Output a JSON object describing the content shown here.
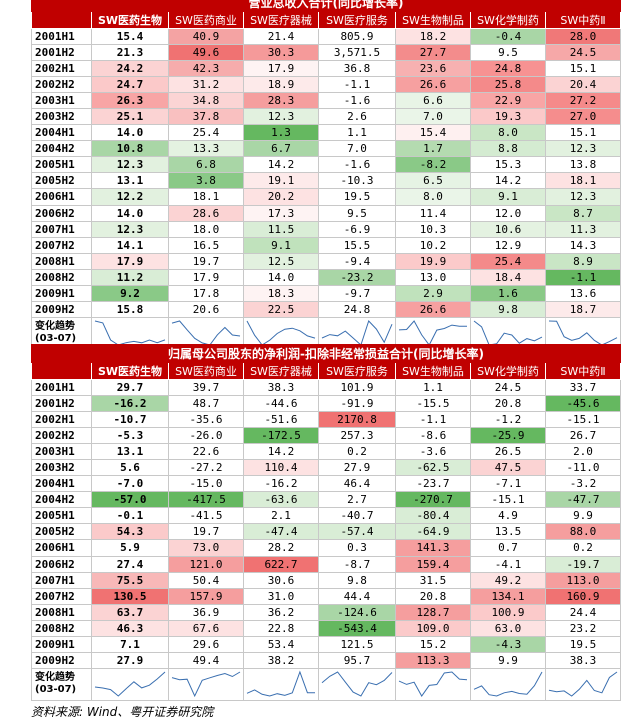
{
  "columns": [
    "SW医药生物",
    "SW医药商业",
    "SW医疗器械",
    "SW医疗服务",
    "SW生物制品",
    "SW化学制药",
    "SW中药Ⅱ"
  ],
  "trend_label": [
    "变化趋势",
    "(03-07)"
  ],
  "source": "资料来源: Wind、粤开证券研究院",
  "colors": {
    "header": "#c00000",
    "border": "#c8c8c8"
  },
  "tables": [
    {
      "title": "营业总收入合计(同比增长率)",
      "rows": [
        {
          "label": "2001H1",
          "values": [
            "15.4",
            "40.9",
            "21.4",
            "805.9",
            "18.2",
            "-0.4",
            "28.0"
          ],
          "bg": [
            "#fff",
            "#f4a3a3",
            "#ffffff",
            "#ffffff",
            "#fde2e2",
            "#a9d6a6",
            "#f07878"
          ]
        },
        {
          "label": "2001H2",
          "values": [
            "21.3",
            "49.6",
            "30.3",
            "3,571.5",
            "27.7",
            "9.5",
            "24.5"
          ],
          "bg": [
            "#fff",
            "#f07272",
            "#f59a9a",
            "#ffffff",
            "#f38c8c",
            "#ffffff",
            "#f6a8a8"
          ]
        },
        {
          "label": "2002H1",
          "values": [
            "24.2",
            "42.3",
            "17.9",
            "36.8",
            "23.6",
            "24.8",
            "15.1"
          ],
          "bg": [
            "#fff",
            "#f6acac",
            "#fef3f3",
            "#ffffff",
            "#f7b1b1",
            "#f79292",
            "#ffffff"
          ]
        },
        {
          "label": "2002H2",
          "values": [
            "24.7",
            "31.2",
            "18.9",
            "-1.1",
            "26.6",
            "25.8",
            "20.4"
          ],
          "bg": [
            "#fff",
            "#fde2e2",
            "#fdeaea",
            "#ffffff",
            "#f6a0a0",
            "#f48a8a",
            "#fbd3d3"
          ]
        },
        {
          "label": "2003H1",
          "values": [
            "26.3",
            "34.8",
            "28.3",
            "-1.6",
            "6.6",
            "22.9",
            "27.2"
          ],
          "bg": [
            "#fff",
            "#fbd4d4",
            "#f59e9e",
            "#ffffff",
            "#e8f4e6",
            "#f8a5a5",
            "#f58a8a"
          ]
        },
        {
          "label": "2003H2",
          "values": [
            "25.1",
            "37.8",
            "12.3",
            "2.6",
            "7.0",
            "19.3",
            "27.0"
          ],
          "bg": [
            "#fff",
            "#f9c0c0",
            "#e2f1df",
            "#ffffff",
            "#eaf5e8",
            "#fbc9c9",
            "#f58d8d"
          ]
        },
        {
          "label": "2004H1",
          "values": [
            "14.0",
            "25.4",
            "1.3",
            "1.1",
            "15.4",
            "8.0",
            "15.1"
          ],
          "bg": [
            "#fff",
            "#ffffff",
            "#65b860",
            "#ffffff",
            "#fef0f0",
            "#c9e6c5",
            "#ffffff"
          ]
        },
        {
          "label": "2004H2",
          "values": [
            "10.8",
            "13.3",
            "6.7",
            "7.0",
            "1.7",
            "8.8",
            "12.3"
          ],
          "bg": [
            "#fff",
            "#e4f2e1",
            "#a9d6a6",
            "#ffffff",
            "#b4dbb0",
            "#d4ebd1",
            "#e2f1df"
          ]
        },
        {
          "label": "2005H1",
          "values": [
            "12.3",
            "6.8",
            "14.2",
            "-1.6",
            "-8.2",
            "15.3",
            "13.8"
          ],
          "bg": [
            "#fff",
            "#a9d6a6",
            "#ffffff",
            "#ffffff",
            "#8ac987",
            "#ffffff",
            "#ffffff"
          ]
        },
        {
          "label": "2005H2",
          "values": [
            "13.1",
            "3.8",
            "19.1",
            "-10.3",
            "6.5",
            "14.2",
            "18.1"
          ],
          "bg": [
            "#fff",
            "#8ac987",
            "#fdeaea",
            "#ffffff",
            "#e6f3e4",
            "#ffffff",
            "#fde2e2"
          ]
        },
        {
          "label": "2006H1",
          "values": [
            "12.2",
            "18.1",
            "20.2",
            "19.5",
            "8.0",
            "9.1",
            "12.3"
          ],
          "bg": [
            "#fff",
            "#ffffff",
            "#fde2e2",
            "#ffffff",
            "#eaf5e8",
            "#d9edd6",
            "#e2f1df"
          ]
        },
        {
          "label": "2006H2",
          "values": [
            "14.0",
            "28.6",
            "17.3",
            "9.5",
            "11.4",
            "12.0",
            "8.7"
          ],
          "bg": [
            "#fff",
            "#fbd3d3",
            "#fef3f3",
            "#ffffff",
            "#ffffff",
            "#ffffff",
            "#c9e6c5"
          ]
        },
        {
          "label": "2007H1",
          "values": [
            "12.3",
            "18.0",
            "11.5",
            "-6.9",
            "10.3",
            "10.6",
            "11.3"
          ],
          "bg": [
            "#fff",
            "#ffffff",
            "#d9edd6",
            "#ffffff",
            "#ffffff",
            "#e4f2e1",
            "#e2f1df"
          ]
        },
        {
          "label": "2007H2",
          "values": [
            "14.1",
            "16.5",
            "9.1",
            "15.5",
            "10.2",
            "12.9",
            "14.3"
          ],
          "bg": [
            "#fff",
            "#ffffff",
            "#c0e2bc",
            "#ffffff",
            "#ffffff",
            "#ffffff",
            "#ffffff"
          ]
        },
        {
          "label": "2008H1",
          "values": [
            "17.9",
            "19.7",
            "12.5",
            "-9.4",
            "19.9",
            "25.4",
            "8.9"
          ],
          "bg": [
            "#fff",
            "#ffffff",
            "#e2f1df",
            "#ffffff",
            "#fbcaca",
            "#f48a8a",
            "#c9e6c5"
          ]
        },
        {
          "label": "2008H2",
          "values": [
            "11.2",
            "17.9",
            "14.0",
            "-23.2",
            "13.0",
            "18.4",
            "-1.1"
          ],
          "bg": [
            "#fff",
            "#ffffff",
            "#ffffff",
            "#a9d6a6",
            "#ffffff",
            "#fde2e2",
            "#65b860"
          ]
        },
        {
          "label": "2009H1",
          "values": [
            "9.2",
            "17.8",
            "18.3",
            "-9.7",
            "2.9",
            "1.6",
            "13.6"
          ],
          "bg": [
            "#fff",
            "#ffffff",
            "#fef3f3",
            "#ffffff",
            "#c0e2bc",
            "#8ac987",
            "#ffffff"
          ]
        },
        {
          "label": "2009H2",
          "values": [
            "15.8",
            "20.6",
            "22.5",
            "24.8",
            "26.6",
            "9.8",
            "18.7"
          ],
          "bg": [
            "#fff",
            "#ffffff",
            "#fbd3d3",
            "#ffffff",
            "#f6a0a0",
            "#d9edd6",
            "#fdeaea"
          ]
        }
      ],
      "first_col_bg": [
        "#ffffff",
        "#ffffff",
        "#fbd3d3",
        "#fbc9c9",
        "#f8a5a5",
        "#fbd3d3",
        "#ffffff",
        "#a9d6a6",
        "#e2f1df",
        "#ffffff",
        "#e2f1df",
        "#ffffff",
        "#e2f1df",
        "#ffffff",
        "#fde2e2",
        "#d9edd6",
        "#8ac987",
        "#ffffff"
      ]
    },
    {
      "title": "归属母公司股东的净利润-扣除非经常损益合计(同比增长率)",
      "rows": [
        {
          "label": "2001H1",
          "values": [
            "29.7",
            "39.7",
            "38.3",
            "101.9",
            "1.1",
            "24.5",
            "33.7"
          ],
          "bg": [
            "#fff",
            "#fff",
            "#fff",
            "#fff",
            "#fff",
            "#fff",
            "#fff"
          ]
        },
        {
          "label": "2001H2",
          "values": [
            "-16.2",
            "48.7",
            "-44.6",
            "-91.9",
            "-15.5",
            "20.8",
            "-45.6"
          ],
          "bg": [
            "#a9d6a6",
            "#fff",
            "#fff",
            "#fff",
            "#fff",
            "#fff",
            "#65b860"
          ]
        },
        {
          "label": "2002H1",
          "values": [
            "-10.7",
            "-35.6",
            "-51.6",
            "2170.8",
            "-1.1",
            "-1.2",
            "-15.1"
          ],
          "bg": [
            "#fff",
            "#fff",
            "#fff",
            "#f07272",
            "#fff",
            "#fff",
            "#fff"
          ]
        },
        {
          "label": "2002H2",
          "values": [
            "-5.3",
            "-26.0",
            "-172.5",
            "257.3",
            "-8.6",
            "-25.9",
            "26.7"
          ],
          "bg": [
            "#fff",
            "#fff",
            "#65b860",
            "#fff",
            "#fff",
            "#65b860",
            "#fff"
          ]
        },
        {
          "label": "2003H1",
          "values": [
            "13.1",
            "22.6",
            "14.2",
            "0.2",
            "-3.6",
            "26.5",
            "2.0"
          ],
          "bg": [
            "#fff",
            "#fff",
            "#fff",
            "#fff",
            "#fff",
            "#fff",
            "#fff"
          ]
        },
        {
          "label": "2003H2",
          "values": [
            "5.6",
            "-27.2",
            "110.4",
            "27.9",
            "-62.5",
            "47.5",
            "-11.0"
          ],
          "bg": [
            "#fff",
            "#fff",
            "#fde2e2",
            "#fff",
            "#d9edd6",
            "#fbd3d3",
            "#fff"
          ]
        },
        {
          "label": "2004H1",
          "values": [
            "-7.0",
            "-15.0",
            "-16.2",
            "46.4",
            "-23.7",
            "-7.1",
            "-3.2"
          ],
          "bg": [
            "#fff",
            "#fff",
            "#fff",
            "#fff",
            "#fff",
            "#fff",
            "#fff"
          ]
        },
        {
          "label": "2004H2",
          "values": [
            "-57.0",
            "-417.5",
            "-63.6",
            "2.7",
            "-270.7",
            "-15.1",
            "-47.7"
          ],
          "bg": [
            "#65b860",
            "#65b860",
            "#d9edd6",
            "#fff",
            "#65b860",
            "#fff",
            "#a9d6a6"
          ]
        },
        {
          "label": "2005H1",
          "values": [
            "-0.1",
            "-41.5",
            "2.1",
            "-40.7",
            "-80.4",
            "4.9",
            "9.9"
          ],
          "bg": [
            "#fff",
            "#fff",
            "#fff",
            "#fff",
            "#d9edd6",
            "#fff",
            "#fff"
          ]
        },
        {
          "label": "2005H2",
          "values": [
            "54.3",
            "19.7",
            "-47.4",
            "-57.4",
            "-64.9",
            "13.5",
            "88.0"
          ],
          "bg": [
            "#fbcaca",
            "#fff",
            "#d9edd6",
            "#d9edd6",
            "#d9edd6",
            "#fff",
            "#f59e9e"
          ]
        },
        {
          "label": "2006H1",
          "values": [
            "5.9",
            "73.0",
            "28.2",
            "0.3",
            "141.3",
            "0.7",
            "0.2"
          ],
          "bg": [
            "#fff",
            "#fbd3d3",
            "#fff",
            "#fff",
            "#f59e9e",
            "#fff",
            "#fff"
          ]
        },
        {
          "label": "2006H2",
          "values": [
            "27.4",
            "121.0",
            "622.7",
            "-8.7",
            "159.4",
            "-4.1",
            "-19.7"
          ],
          "bg": [
            "#fff",
            "#f59e9e",
            "#f07272",
            "#fff",
            "#f59e9e",
            "#fff",
            "#d9edd6"
          ]
        },
        {
          "label": "2007H1",
          "values": [
            "75.5",
            "50.4",
            "30.6",
            "9.8",
            "31.5",
            "49.2",
            "113.0"
          ],
          "bg": [
            "#f8b8b8",
            "#fff",
            "#fff",
            "#fff",
            "#fff",
            "#fde2e2",
            "#f59e9e"
          ]
        },
        {
          "label": "2007H2",
          "values": [
            "130.5",
            "157.9",
            "31.0",
            "44.4",
            "20.8",
            "134.1",
            "160.9"
          ],
          "bg": [
            "#f07272",
            "#f59e9e",
            "#fff",
            "#fff",
            "#fff",
            "#f59e9e",
            "#f07272"
          ]
        },
        {
          "label": "2008H1",
          "values": [
            "63.7",
            "36.9",
            "36.2",
            "-124.6",
            "128.7",
            "100.9",
            "24.4"
          ],
          "bg": [
            "#fbd3d3",
            "#fff",
            "#fff",
            "#a9d6a6",
            "#f59e9e",
            "#fbcaca",
            "#fff"
          ]
        },
        {
          "label": "2008H2",
          "values": [
            "46.3",
            "67.6",
            "22.8",
            "-543.4",
            "109.0",
            "63.0",
            "23.2"
          ],
          "bg": [
            "#fde2e2",
            "#fde2e2",
            "#fff",
            "#65b860",
            "#fbcaca",
            "#fde2e2",
            "#fff"
          ]
        },
        {
          "label": "2009H1",
          "values": [
            "7.1",
            "29.6",
            "53.4",
            "121.5",
            "15.2",
            "-4.3",
            "19.5"
          ],
          "bg": [
            "#fff",
            "#fff",
            "#fff",
            "#fff",
            "#fff",
            "#a9d6a6",
            "#fff"
          ]
        },
        {
          "label": "2009H2",
          "values": [
            "27.9",
            "49.4",
            "38.2",
            "95.7",
            "113.3",
            "9.9",
            "38.3"
          ],
          "bg": [
            "#fff",
            "#fff",
            "#fff",
            "#fff",
            "#f59e9e",
            "#fff",
            "#fff"
          ]
        }
      ]
    }
  ]
}
